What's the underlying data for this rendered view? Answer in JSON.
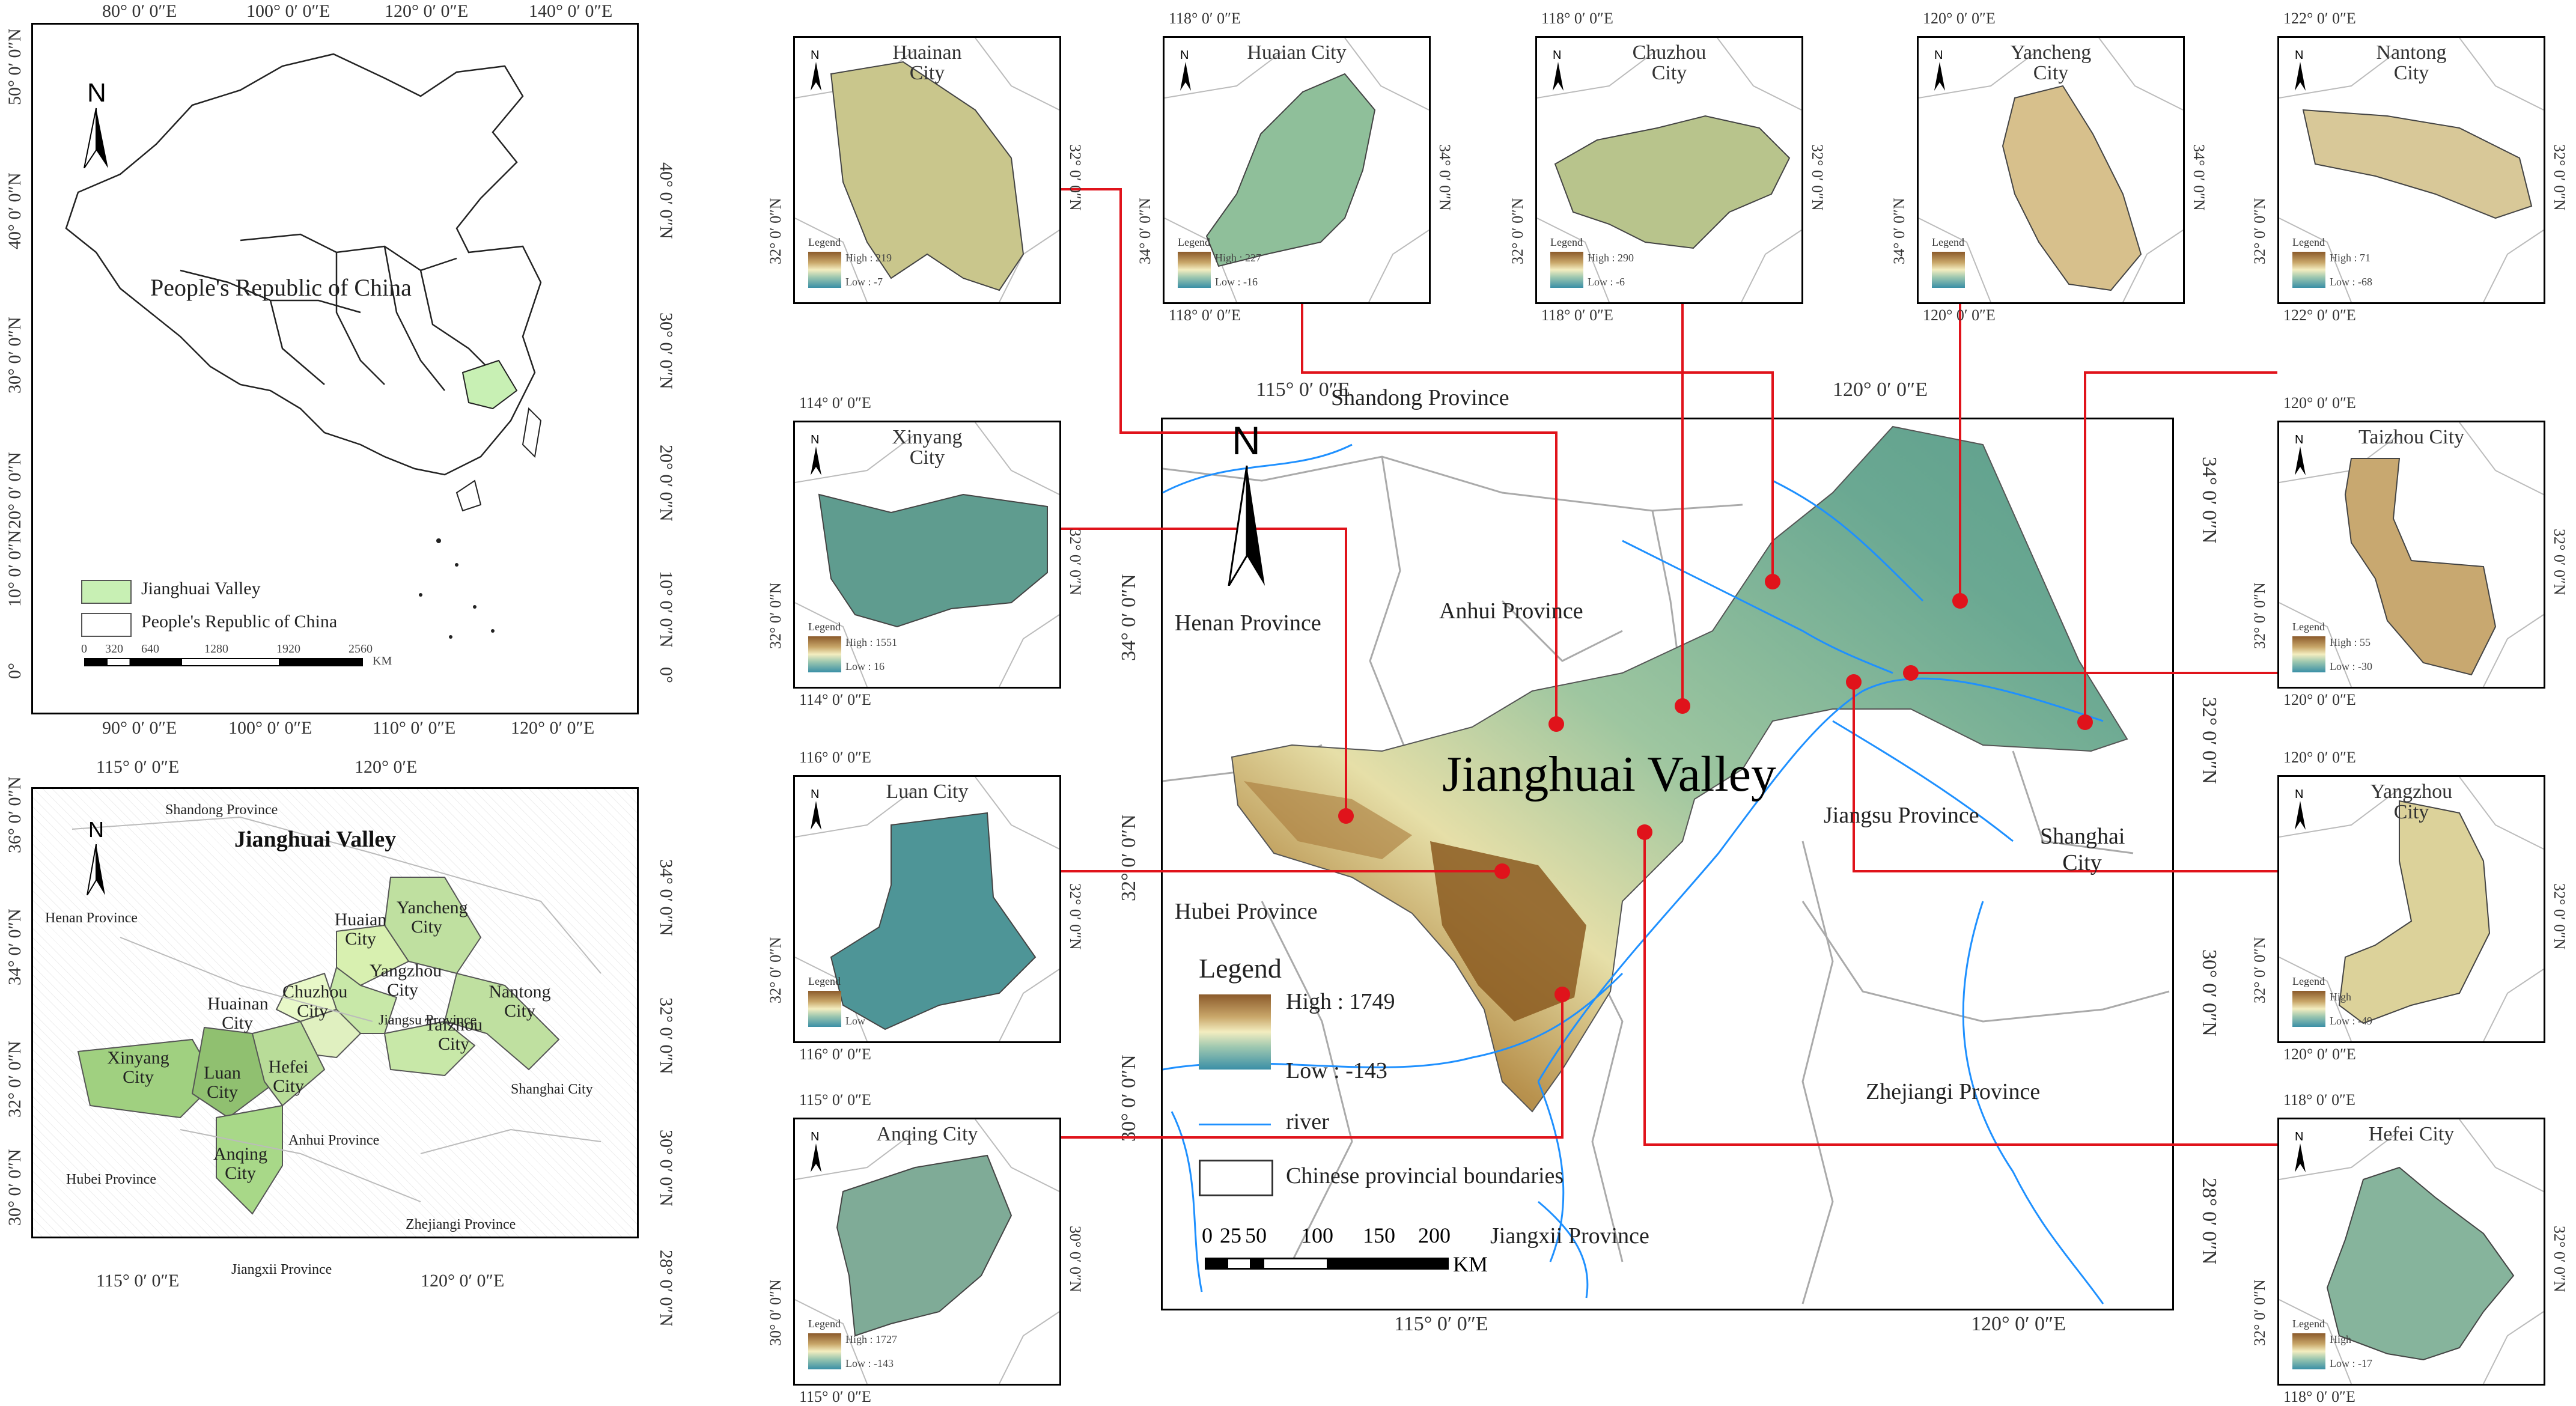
{
  "overview": {
    "top_ticks": [
      "80° 0′ 0″E",
      "100° 0′ 0″E",
      "120° 0′ 0″E",
      "140° 0′ 0″E"
    ],
    "bottom_ticks": [
      "90° 0′ 0″E",
      "100° 0′ 0″E",
      "110° 0′ 0″E",
      "120° 0′ 0″E"
    ],
    "left_ticks": [
      "50° 0′ 0″N",
      "40° 0′ 0″N",
      "30° 0′ 0″N",
      "20° 0′ 0″N",
      "10° 0′ 0″N",
      "0°"
    ],
    "right_ticks": [
      "40° 0′ 0″N",
      "30° 0′ 0″N",
      "20° 0′ 0″N",
      "10° 0′ 0″N",
      "0°"
    ],
    "country_label": "People's Republic of China",
    "legend": [
      "Jianghuai Valley",
      "People's Republic of China"
    ],
    "scale": [
      "0",
      "320",
      "640",
      "1280",
      "1920",
      "2560"
    ],
    "scale_unit": "KM",
    "north": "N",
    "colors": {
      "valley": "#c8f0b4"
    }
  },
  "regional": {
    "title": "Jianghuai Valley",
    "top_ticks": [
      "115° 0′ 0″E",
      "120° 0ʹE"
    ],
    "bottom_ticks": [
      "115° 0′ 0″E",
      "120° 0′ 0″E"
    ],
    "left_ticks": [
      "36° 0′ 0″N",
      "34° 0′ 0″N",
      "32° 0′ 0″N",
      "30° 0′ 0″N",
      "28° 0′ 0″N"
    ],
    "right_ticks": [
      "34° 0′ 0″N",
      "32° 0′ 0″N",
      "30° 0′ 0″N",
      "28° 0′ 0″N"
    ],
    "provinces": [
      "Shandong Province",
      "Henan Province",
      "Jiangsu Province",
      "Shanghai City",
      "Anhui Province",
      "Hubei Province",
      "Zhejiangi Province",
      "Jiangxii Province"
    ],
    "cities": [
      "Yancheng City",
      "Huaian City",
      "Yangzhou City",
      "Nantong City",
      "Huainan City",
      "Chuzhou City",
      "Taizhou City",
      "Xinyang City",
      "Luan City",
      "Hefei City",
      "Anqing City"
    ],
    "north": "N"
  },
  "main": {
    "title": "Jianghuai Valley",
    "top_ticks": [
      "115° 0′ 0″E",
      "120° 0′ 0″E"
    ],
    "bottom_ticks": [
      "115° 0′ 0″E",
      "120° 0′ 0″E"
    ],
    "left_ticks": [
      "34° 0′ 0″N",
      "32° 0′ 0″N",
      "30° 0′ 0″N"
    ],
    "right_ticks": [
      "34° 0′ 0″N",
      "32° 0′ 0″N",
      "30° 0′ 0″N",
      "28° 0′ 0″N"
    ],
    "provinces": {
      "shandong": "Shandong Province",
      "henan": "Henan Province",
      "anhui": "Anhui Province",
      "jiangsu": "Jiangsu Province",
      "shanghai": "Shanghai City",
      "hubei": "Hubei Province",
      "zhejiang": "Zhejiangi Province",
      "jiangxi": "Jiangxii Province"
    },
    "legend": {
      "title": "Legend",
      "high": "High : 1749",
      "low": "Low : -143",
      "river": "river",
      "boundaries": "Chinese provincial boundaries"
    },
    "scale": [
      "0",
      "25",
      "50",
      "100",
      "150",
      "200"
    ],
    "scale_unit": "KM",
    "north": "N",
    "colors": {
      "river": "#1e90ff",
      "points": "#e0131b",
      "lines": "#e0131b"
    }
  },
  "cities": [
    {
      "id": "huainan",
      "title": "Huainan City",
      "high": "High : 219",
      "low": "Low : -7",
      "top_tick": "",
      "left_tick": "32° 0′ 0″N",
      "right_tick": "32° 0′ 0″N"
    },
    {
      "id": "huaian",
      "title": "Huaian City",
      "high": "High : 227",
      "low": "Low : -16",
      "top_tick": "118° 0′ 0″E",
      "left_tick": "34° 0′ 0″N",
      "right_tick": "34° 0′ 0″N"
    },
    {
      "id": "chuzhou",
      "title": "Chuzhou City",
      "high": "High : 290",
      "low": "Low : -6",
      "top_tick": "118° 0′ 0″E",
      "left_tick": "32° 0′ 0″N",
      "right_tick": "32° 0′ 0″N"
    },
    {
      "id": "yancheng",
      "title": "Yancheng City",
      "high": "",
      "low": "",
      "top_tick": "120° 0′ 0″E",
      "left_tick": "34° 0′ 0″N",
      "right_tick": "34° 0′ 0″N"
    },
    {
      "id": "nantong",
      "title": "Nantong City",
      "high": "High : 71",
      "low": "Low : -68",
      "top_tick": "122° 0′ 0″E",
      "left_tick": "32° 0′ 0″N",
      "right_tick": "32° 0′ 0″N"
    },
    {
      "id": "xinyang",
      "title": "Xinyang City",
      "high": "High : 1551",
      "low": "Low : 16",
      "top_tick": "114° 0′ 0″E",
      "left_tick": "32° 0′ 0″N",
      "right_tick": "32° 0′ 0″N"
    },
    {
      "id": "taizhou",
      "title": "Taizhou City",
      "high": "High : 55",
      "low": "Low : -30",
      "top_tick": "120° 0′ 0″E",
      "left_tick": "32° 0′ 0″N",
      "right_tick": "32° 0′ 0″N"
    },
    {
      "id": "luan",
      "title": "Luan City",
      "high": "",
      "low": "Low",
      "top_tick": "116° 0′ 0″E",
      "left_tick": "32° 0′ 0″N",
      "right_tick": "32° 0′ 0″N"
    },
    {
      "id": "yangzhou",
      "title": "Yangzhou City",
      "high": "High",
      "low": "Low : -49",
      "top_tick": "120° 0′ 0″E",
      "left_tick": "32° 0′ 0″N",
      "right_tick": "32° 0′ 0″N"
    },
    {
      "id": "anqing",
      "title": "Anqing City",
      "high": "High : 1727",
      "low": "Low : -143",
      "top_tick": "115° 0′ 0″E",
      "left_tick": "30° 0′ 0″N",
      "right_tick": "30° 0′ 0″N"
    },
    {
      "id": "hefei",
      "title": "Hefei City",
      "high": "High",
      "low": "Low : -17",
      "top_tick": "118° 0′ 0″E",
      "left_tick": "32° 0′ 0″N",
      "right_tick": "32° 0′ 0″N"
    }
  ],
  "city_bottom_ticks": {
    "huainan": "",
    "huaian": "118° 0′ 0″E",
    "chuzhou": "118° 0′ 0″E",
    "yancheng": "120° 0′ 0″E",
    "nantong": "122° 0′ 0″E",
    "xinyang": "114° 0′ 0″E",
    "xinyang2": "116° 0′ 0″E",
    "taizhou": "120° 0′ 0″E",
    "luan": "116° 0′ 0″E",
    "yangzhou": "120° 0′ 0″E",
    "anqing": "115° 0′ 0″E",
    "hefei": "118° 0′ 0″E"
  }
}
